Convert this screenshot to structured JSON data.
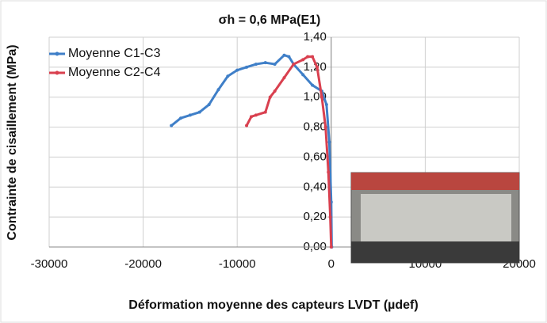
{
  "chart_data": {
    "type": "line",
    "title": "σh = 0,6 MPa(E1)",
    "x_label": "Déformation moyenne des capteurs LVDT (µdef)",
    "y_label": "Contrainte de cisaillement (MPa)",
    "xlim": [
      -30000,
      20000
    ],
    "xticks": [
      -30000,
      -20000,
      -10000,
      0,
      10000,
      20000
    ],
    "ylim": [
      0,
      1.4
    ],
    "yticks": [
      {
        "value": 0,
        "label": "0,00"
      },
      {
        "value": 0.2,
        "label": "0,20"
      },
      {
        "value": 0.4,
        "label": "0,40"
      },
      {
        "value": 0.6,
        "label": "0,60"
      },
      {
        "value": 0.8,
        "label": "0,80"
      },
      {
        "value": 1.0,
        "label": "1,00"
      },
      {
        "value": 1.2,
        "label": "1,20"
      },
      {
        "value": 1.4,
        "label": "1,40"
      }
    ],
    "grid": true,
    "legend": "upper left",
    "series": [
      {
        "name": "Moyenne C1-C3",
        "color": "#3f7fc8",
        "x": [
          -17000,
          -16000,
          -15000,
          -14000,
          -13000,
          -12000,
          -11000,
          -10000,
          -9000,
          -8000,
          -7000,
          -6000,
          -5000,
          -4500,
          -4000,
          -3000,
          -2000,
          -1000,
          -500,
          -200,
          0,
          50
        ],
        "values": [
          0.81,
          0.86,
          0.88,
          0.9,
          0.95,
          1.05,
          1.14,
          1.18,
          1.2,
          1.22,
          1.23,
          1.22,
          1.28,
          1.27,
          1.22,
          1.15,
          1.08,
          1.04,
          0.95,
          0.7,
          0.3,
          0
        ]
      },
      {
        "name": "Moyenne C2-C4",
        "color": "#d9404f",
        "x": [
          -9000,
          -8500,
          -8000,
          -7000,
          -6500,
          -6000,
          -5000,
          -4000,
          -3000,
          -2500,
          -2000,
          -1500,
          -1000,
          -600,
          -300,
          -100,
          0
        ],
        "values": [
          0.81,
          0.87,
          0.88,
          0.9,
          1.0,
          1.04,
          1.13,
          1.22,
          1.25,
          1.27,
          1.27,
          1.2,
          1.0,
          0.8,
          0.5,
          0.2,
          0
        ]
      }
    ]
  }
}
